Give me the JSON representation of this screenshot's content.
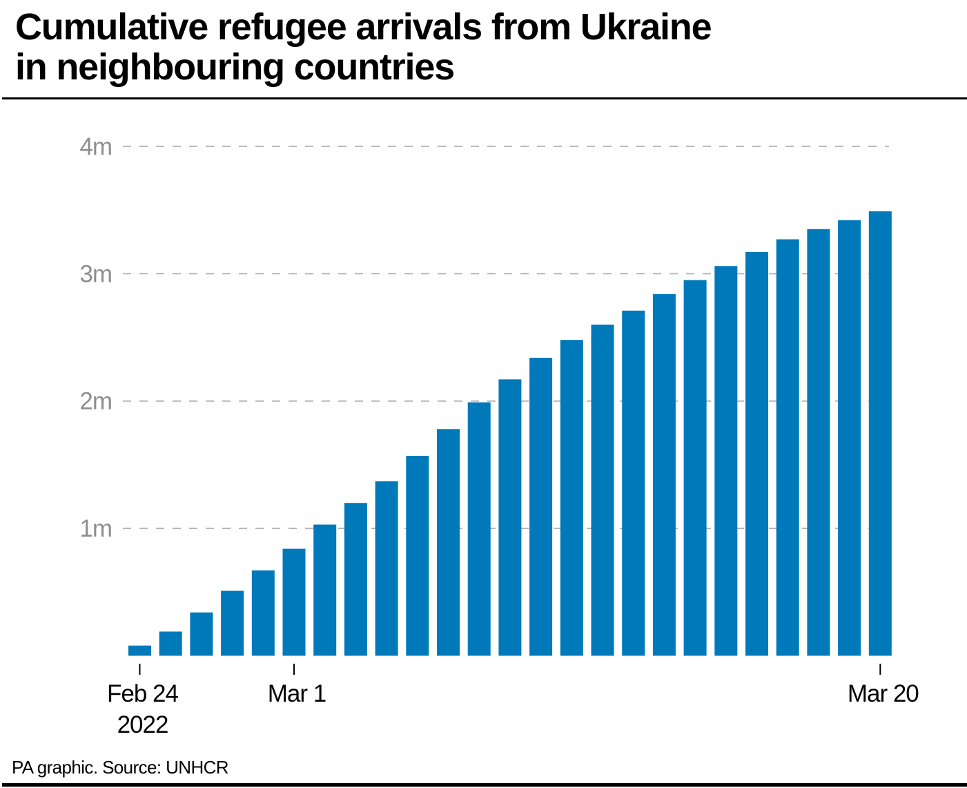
{
  "header": {
    "title_lines": [
      "Cumulative refugee arrivals from Ukraine",
      "in neighbouring countries"
    ]
  },
  "footer": {
    "source": "PA graphic. Source: UNHCR"
  },
  "colors": {
    "bar": "#0079bb",
    "grid": "#b5b5b5",
    "ytick_label": "#8e8e8e"
  },
  "chart_data": {
    "type": "bar",
    "title": "Cumulative refugee arrivals from Ukraine in neighbouring countries",
    "xlabel": "",
    "ylabel": "",
    "units": "millions",
    "ylim": [
      0,
      4
    ],
    "grid": true,
    "yticks": [
      {
        "value": 1,
        "label": "1m"
      },
      {
        "value": 2,
        "label": "2m"
      },
      {
        "value": 3,
        "label": "3m"
      },
      {
        "value": 4,
        "label": "4m"
      }
    ],
    "xticks": [
      {
        "index": 0,
        "label_lines": [
          "Feb 24",
          "2022"
        ]
      },
      {
        "index": 5,
        "label_lines": [
          "Mar 1"
        ]
      },
      {
        "index": 24,
        "label_lines": [
          "Mar 20"
        ]
      }
    ],
    "categories": [
      "2022-02-24",
      "2022-02-25",
      "2022-02-26",
      "2022-02-27",
      "2022-02-28",
      "2022-03-01",
      "2022-03-02",
      "2022-03-03",
      "2022-03-04",
      "2022-03-05",
      "2022-03-06",
      "2022-03-07",
      "2022-03-08",
      "2022-03-09",
      "2022-03-10",
      "2022-03-11",
      "2022-03-12",
      "2022-03-13",
      "2022-03-14",
      "2022-03-15",
      "2022-03-16",
      "2022-03-17",
      "2022-03-18",
      "2022-03-19",
      "2022-03-20"
    ],
    "values": [
      0.08,
      0.19,
      0.34,
      0.51,
      0.67,
      0.84,
      1.03,
      1.2,
      1.37,
      1.57,
      1.78,
      1.99,
      2.17,
      2.34,
      2.48,
      2.6,
      2.71,
      2.84,
      2.95,
      3.06,
      3.17,
      3.27,
      3.35,
      3.42,
      3.49
    ],
    "source": "UNHCR"
  }
}
